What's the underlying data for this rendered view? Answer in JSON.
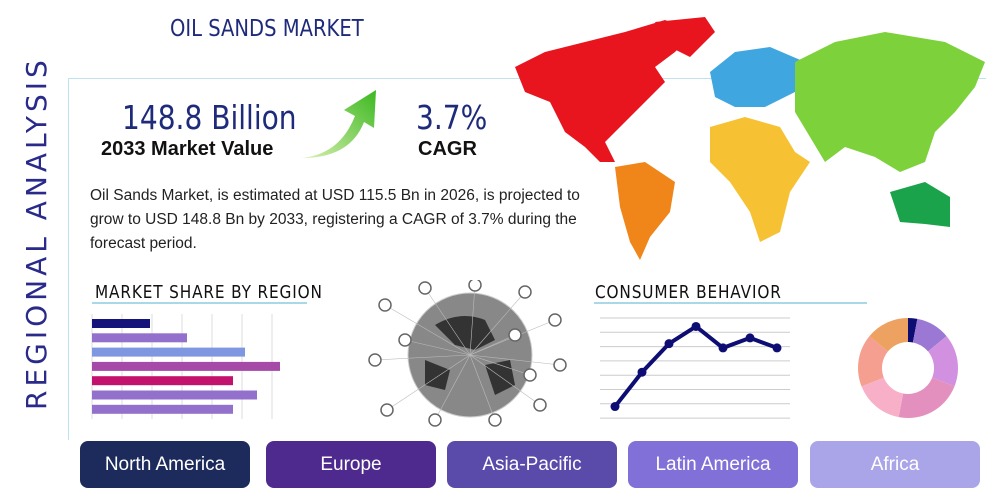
{
  "title": "OIL SANDS MARKET",
  "side_label": "REGIONAL ANALYSIS",
  "market_value": {
    "value": "148.8 Billion",
    "label": "2033 Market Value"
  },
  "cagr": {
    "value": "3.7%",
    "label": "CAGR"
  },
  "description": "Oil Sands Market, is estimated at USD 115.5 Bn in 2026, is projected to grow to USD 148.8 Bn by 2033, registering a CAGR of 3.7% during the forecast period.",
  "market_share": {
    "title": "MARKET SHARE BY REGION",
    "bars": [
      {
        "value": 58,
        "color": "#14147a"
      },
      {
        "value": 95,
        "color": "#9370cc"
      },
      {
        "value": 153,
        "color": "#7f97e0"
      },
      {
        "value": 188,
        "color": "#a64aa8"
      },
      {
        "value": 141,
        "color": "#c2126e"
      },
      {
        "value": 165,
        "color": "#9370cc"
      },
      {
        "value": 141,
        "color": "#9370cc"
      }
    ]
  },
  "consumer_behavior": {
    "title": "CONSUMER BEHAVIOR",
    "line": {
      "color": "#0d0d73",
      "values": [
        0.8,
        3.2,
        5.2,
        6.4,
        4.9,
        5.6,
        4.9
      ]
    },
    "donut": [
      {
        "value": 3,
        "color": "#0d0d73"
      },
      {
        "value": 11,
        "color": "#9a78d4"
      },
      {
        "value": 17,
        "color": "#d291e0"
      },
      {
        "value": 22,
        "color": "#e490bf"
      },
      {
        "value": 16,
        "color": "#f7b0c8"
      },
      {
        "value": 17,
        "color": "#f59f90"
      },
      {
        "value": 14,
        "color": "#eda261"
      }
    ]
  },
  "regions": [
    {
      "label": "North America",
      "color": "#1c2b5c"
    },
    {
      "label": "Europe",
      "color": "#4f2a8e"
    },
    {
      "label": "Asia-Pacific",
      "color": "#5a4aaa"
    },
    {
      "label": "Latin America",
      "color": "#8070d8"
    },
    {
      "label": "Africa",
      "color": "#aaa5e8"
    }
  ]
}
